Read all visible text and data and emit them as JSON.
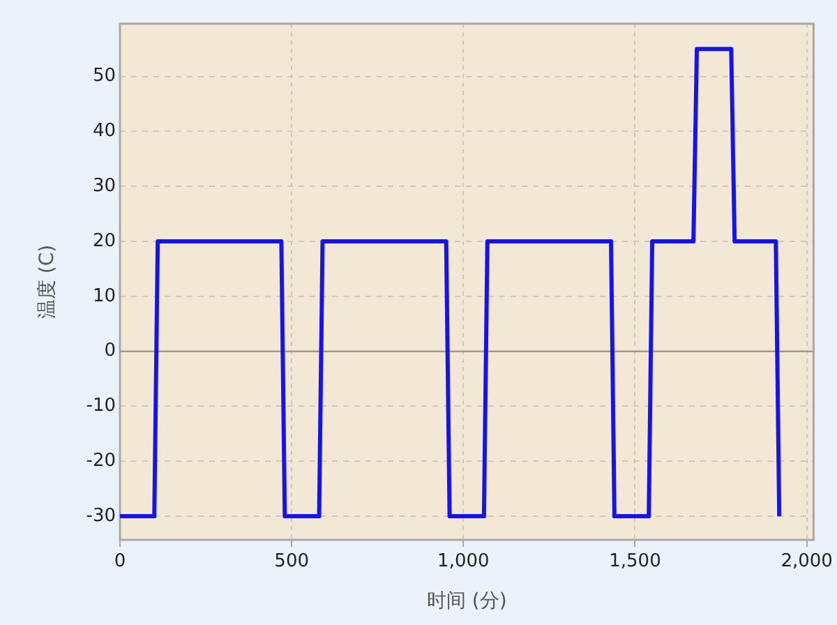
{
  "chart_data": {
    "type": "line",
    "xlabel": "时间 (分)",
    "ylabel": "温度 (C)",
    "x": [
      0,
      100,
      110,
      470,
      480,
      580,
      590,
      950,
      960,
      1060,
      1070,
      1430,
      1440,
      1540,
      1550,
      1670,
      1680,
      1780,
      1790,
      1910,
      1920
    ],
    "series": [
      {
        "color": "#1414f0",
        "values": [
          -30,
          -30,
          20,
          20,
          -30,
          -30,
          20,
          20,
          -30,
          -30,
          20,
          20,
          -30,
          -30,
          20,
          20,
          55,
          55,
          20,
          20,
          -30
        ]
      }
    ],
    "xlim": [
      0,
      2020
    ],
    "ylim": [
      -34.3,
      59.6
    ],
    "xticks": [
      0,
      500,
      {
        "value": 1000,
        "label": "1,000"
      },
      {
        "value": 1500,
        "label": "1,500"
      },
      {
        "value": 2000,
        "label": "2,000"
      }
    ],
    "yticks": [
      -30,
      -20,
      -10,
      0,
      10,
      20,
      30,
      40,
      50
    ],
    "ref_lines": [
      {
        "axis": "y",
        "value": 0,
        "color": "#a09a90"
      }
    ],
    "grid": true,
    "legend": false,
    "marker": "none",
    "line_style": "solid"
  }
}
